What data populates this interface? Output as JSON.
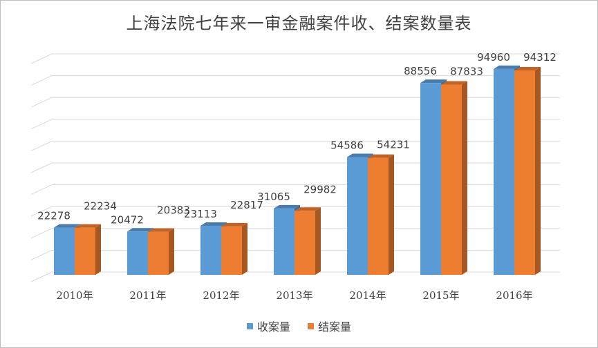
{
  "chart_data": {
    "type": "bar",
    "title": "上海法院七年来一审金融案件收、结案数量表",
    "categories": [
      "2010年",
      "2011年",
      "2012年",
      "2013年",
      "2014年",
      "2015年",
      "2016年"
    ],
    "series": [
      {
        "name": "收案量",
        "values": [
          22278,
          20472,
          23113,
          31065,
          54586,
          88556,
          94960
        ],
        "color": "#5b9bd5"
      },
      {
        "name": "结案量",
        "values": [
          22234,
          20383,
          22817,
          29982,
          54231,
          87833,
          94312
        ],
        "color": "#ed7d31"
      }
    ],
    "ylim": [
      0,
      100000
    ],
    "grid": true,
    "legend": "bottom"
  }
}
